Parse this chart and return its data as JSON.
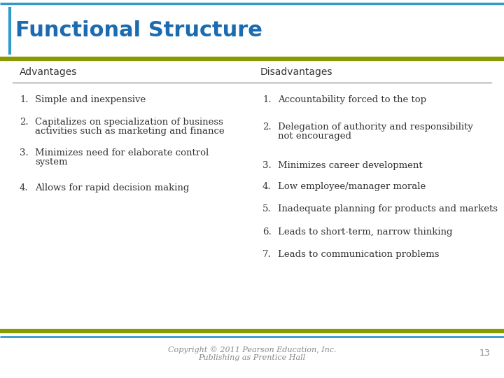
{
  "title": "Functional Structure",
  "title_color": "#1B6BB0",
  "title_fontsize": 22,
  "bg_color": "#FFFFFF",
  "border_top_color": "#3399CC",
  "border_olive_color": "#8B9900",
  "left_header": "Advantages",
  "right_header": "Disadvantages",
  "header_fontsize": 10,
  "advantages": [
    [
      "1.",
      "Simple and inexpensive"
    ],
    [
      "2.",
      "Capitalizes on specialization of business\nactivities such as marketing and finance"
    ],
    [
      "3.",
      "Minimizes need for elaborate control\nsystem"
    ],
    [
      "4.",
      "Allows for rapid decision making"
    ]
  ],
  "disadvantages": [
    [
      "1.",
      "Accountability forced to the top"
    ],
    [
      "2.",
      "Delegation of authority and responsibility\nnot encouraged"
    ],
    [
      "3.",
      "Minimizes career development"
    ],
    [
      "4.",
      "Low employee/manager morale"
    ],
    [
      "5.",
      "Inadequate planning for products and markets"
    ],
    [
      "6.",
      "Leads to short-term, narrow thinking"
    ],
    [
      "7.",
      "Leads to communication problems"
    ]
  ],
  "body_fontsize": 9.5,
  "footer_text": "Copyright © 2011 Pearson Education, Inc.\nPublishing as Prentice Hall",
  "footer_page": "13",
  "footer_fontsize": 8,
  "text_color": "#333333",
  "divider_color": "#888888"
}
